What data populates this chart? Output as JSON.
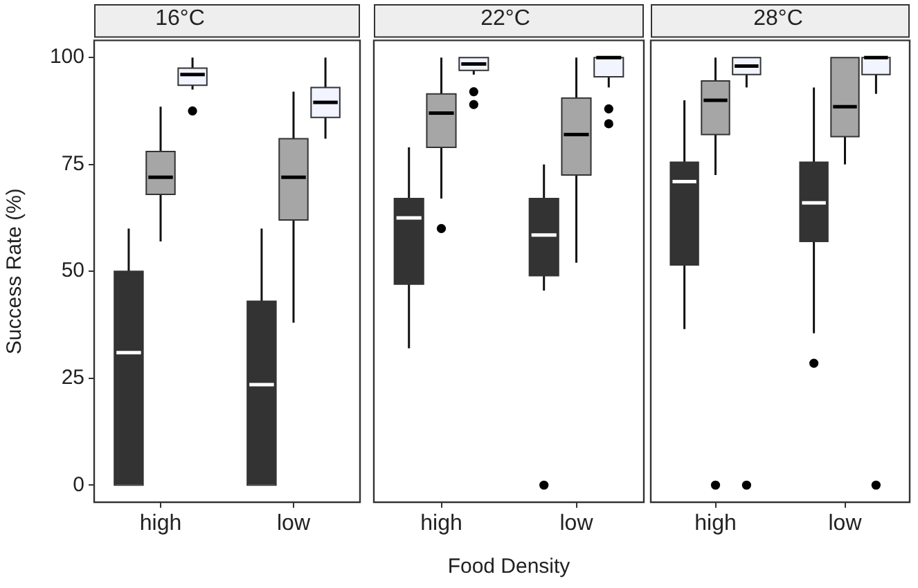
{
  "chart_data": [
    {
      "type": "box",
      "title": "16°C",
      "ylabel": "Success Rate (%)",
      "categories": [
        "high",
        "low"
      ],
      "ylim": [
        -4,
        104
      ],
      "yticks": [
        0,
        25,
        50,
        75,
        100
      ],
      "grid": false,
      "legend": false,
      "series": [
        {
          "color": "#333333",
          "boxes": [
            {
              "low": 0,
              "q1": 0,
              "median": 31,
              "q3": 50,
              "high": 60
            },
            {
              "low": 0,
              "q1": 0,
              "median": 23.5,
              "q3": 43,
              "high": 60
            }
          ]
        },
        {
          "color": "#a6a6a6",
          "boxes": [
            {
              "low": 57,
              "q1": 68,
              "median": 72,
              "q3": 78,
              "high": 88.5
            },
            {
              "low": 38,
              "q1": 62,
              "median": 72,
              "q3": 81,
              "high": 92
            }
          ]
        },
        {
          "color": "#f2f4ff",
          "boxes": [
            {
              "low": 92.5,
              "q1": 93.5,
              "median": 96,
              "q3": 97.5,
              "high": 100,
              "outliers": [
                87.5
              ]
            },
            {
              "low": 81,
              "q1": 86,
              "median": 89.5,
              "q3": 93,
              "high": 100
            }
          ]
        }
      ]
    },
    {
      "type": "box",
      "title": "22°C",
      "xlabel": "Food Density",
      "categories": [
        "high",
        "low"
      ],
      "ylim": [
        -4,
        104
      ],
      "yticks": [
        0,
        25,
        50,
        75,
        100
      ],
      "tick_labels": "x",
      "grid": false,
      "legend": false,
      "series": [
        {
          "color": "#333333",
          "boxes": [
            {
              "low": 32,
              "q1": 47,
              "median": 62.5,
              "q3": 67,
              "high": 79
            },
            {
              "low": 45.5,
              "q1": 49,
              "median": 58.5,
              "q3": 67,
              "high": 75,
              "outliers": [
                0
              ]
            }
          ]
        },
        {
          "color": "#a6a6a6",
          "boxes": [
            {
              "low": 67,
              "q1": 79,
              "median": 87,
              "q3": 91.5,
              "high": 100,
              "outliers": [
                60
              ]
            },
            {
              "low": 52,
              "q1": 72.5,
              "median": 82,
              "q3": 90.5,
              "high": 100
            }
          ]
        },
        {
          "color": "#f2f4ff",
          "boxes": [
            {
              "low": 96,
              "q1": 97,
              "median": 98.5,
              "q3": 100,
              "high": 100,
              "outliers": [
                92,
                89
              ]
            },
            {
              "low": 93,
              "q1": 95.5,
              "median": 100,
              "q3": 100,
              "high": 100,
              "outliers": [
                88,
                84.5
              ]
            }
          ]
        }
      ]
    },
    {
      "type": "box",
      "title": "28°C",
      "categories": [
        "high",
        "low"
      ],
      "ylim": [
        -4,
        104
      ],
      "yticks": [
        0,
        25,
        50,
        75,
        100
      ],
      "tick_labels": "x",
      "grid": false,
      "legend": false,
      "series": [
        {
          "color": "#333333",
          "boxes": [
            {
              "low": 36.5,
              "q1": 51.5,
              "median": 71,
              "q3": 75.5,
              "high": 90
            },
            {
              "low": 35.5,
              "q1": 57,
              "median": 66,
              "q3": 75.5,
              "high": 93,
              "outliers": [
                28.5
              ]
            }
          ]
        },
        {
          "color": "#a6a6a6",
          "boxes": [
            {
              "low": 72.5,
              "q1": 82,
              "median": 90,
              "q3": 94.5,
              "high": 100,
              "outliers": [
                0
              ]
            },
            {
              "low": 75,
              "q1": 81.5,
              "median": 88.5,
              "q3": 100,
              "high": 100
            }
          ]
        },
        {
          "color": "#f2f4ff",
          "boxes": [
            {
              "low": 93,
              "q1": 96,
              "median": 98,
              "q3": 100,
              "high": 100,
              "outliers": [
                0
              ]
            },
            {
              "low": 91.5,
              "q1": 96,
              "median": 100,
              "q3": 100,
              "high": 100,
              "outliers": [
                0
              ]
            }
          ]
        }
      ]
    }
  ]
}
